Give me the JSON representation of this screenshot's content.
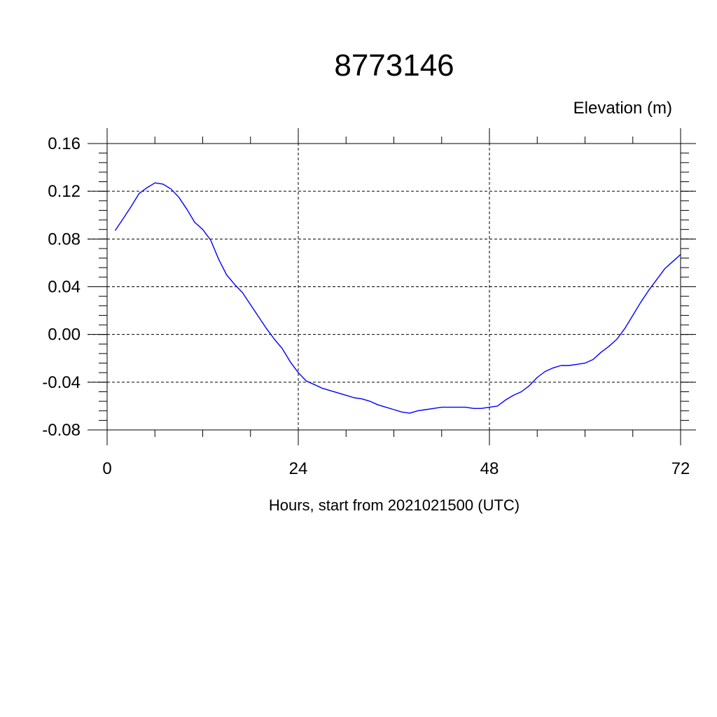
{
  "chart_data": {
    "type": "line",
    "title": "8773146",
    "ylabel": "Elevation (m)",
    "xlabel": "Hours, start from 2021021500 (UTC)",
    "xlim": [
      0,
      72
    ],
    "ylim": [
      -0.08,
      0.16
    ],
    "x_ticks": [
      0,
      24,
      48,
      72
    ],
    "x_tick_labels": [
      "0",
      "24",
      "48",
      "72"
    ],
    "y_ticks": [
      -0.08,
      -0.04,
      0.0,
      0.04,
      0.08,
      0.12,
      0.16
    ],
    "y_tick_labels": [
      "-0.08",
      "-0.04",
      "0.00",
      "0.04",
      "0.08",
      "0.12",
      "0.16"
    ],
    "grid": true,
    "line_color": "#0000ff",
    "series": [
      {
        "x": [
          1,
          2,
          3,
          4,
          5,
          6,
          7,
          8,
          9,
          10,
          11,
          12,
          13,
          14,
          15,
          16,
          17,
          18,
          19,
          20,
          21,
          22,
          23,
          24,
          25,
          26,
          27,
          28,
          29,
          30,
          31,
          32,
          33,
          34,
          35,
          36,
          37,
          38,
          39,
          40,
          41,
          42,
          43,
          44,
          45,
          46,
          47,
          48,
          49,
          50,
          51,
          52,
          53,
          54,
          55,
          56,
          57,
          58,
          59,
          60,
          61,
          62,
          63,
          64,
          65,
          66,
          67,
          68,
          69,
          70,
          71,
          72
        ],
        "values": [
          0.087,
          0.097,
          0.107,
          0.118,
          0.123,
          0.127,
          0.126,
          0.122,
          0.115,
          0.105,
          0.094,
          0.088,
          0.079,
          0.063,
          0.05,
          0.042,
          0.035,
          0.025,
          0.015,
          0.005,
          -0.004,
          -0.012,
          -0.023,
          -0.032,
          -0.039,
          -0.042,
          -0.045,
          -0.047,
          -0.049,
          -0.051,
          -0.053,
          -0.054,
          -0.056,
          -0.059,
          -0.061,
          -0.063,
          -0.065,
          -0.066,
          -0.064,
          -0.063,
          -0.062,
          -0.061,
          -0.061,
          -0.061,
          -0.061,
          -0.062,
          -0.062,
          -0.061,
          -0.06,
          -0.055,
          -0.051,
          -0.048,
          -0.043,
          -0.036,
          -0.031,
          -0.028,
          -0.026,
          -0.026,
          -0.025,
          -0.024,
          -0.021,
          -0.015,
          -0.01,
          -0.004,
          0.005,
          0.016,
          0.027,
          0.037,
          0.046,
          0.055,
          0.061,
          0.067
        ]
      }
    ]
  }
}
